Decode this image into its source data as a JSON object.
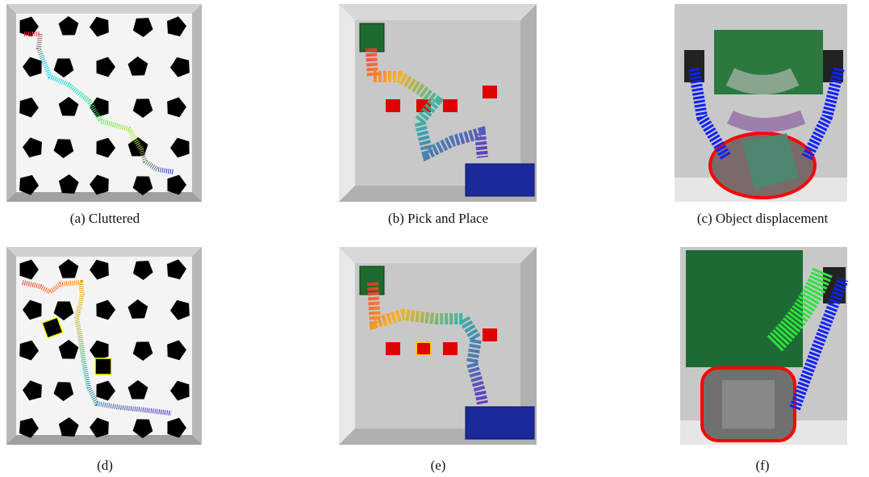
{
  "panels": [
    {
      "caption": "(a) Cluttered"
    },
    {
      "caption": "(b) Pick and Place"
    },
    {
      "caption": "(c) Object displacement"
    },
    {
      "caption": "(d)"
    },
    {
      "caption": "(e)"
    },
    {
      "caption": "(f)"
    }
  ]
}
